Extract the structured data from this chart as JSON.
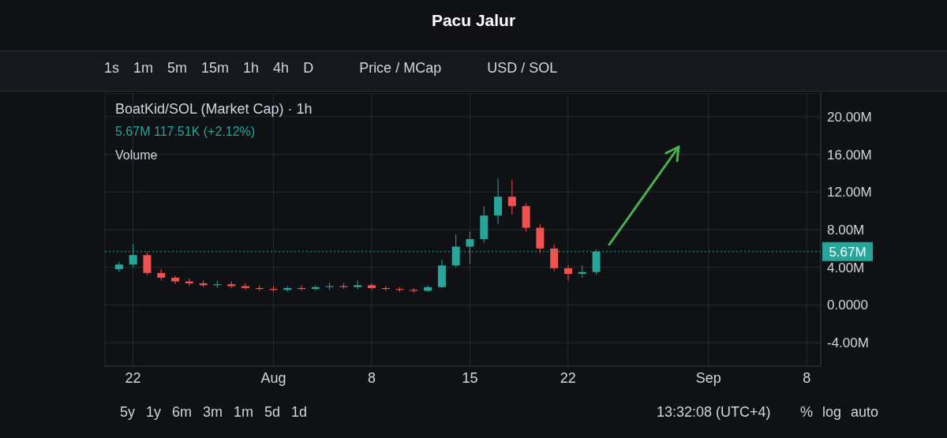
{
  "chart_data": {
    "type": "candlestick",
    "title": "Pacu Jalur",
    "subtitle": "BoatKid/SOL (Market Cap) · 1h",
    "annotations": [
      "5.67M 117.51K (+2.12%)",
      "Volume",
      "13:32:08 (UTC+4)",
      "1s",
      "1m",
      "5m",
      "15m",
      "1h",
      "4h",
      "D",
      "Price / MCap",
      "USD / SOL",
      "5y",
      "1y",
      "6m",
      "3m",
      "1m",
      "5d",
      "1d",
      "%",
      "log",
      "auto"
    ],
    "x": [
      "--07-21",
      "--07-22",
      "--07-23",
      "--07-24",
      "--07-25",
      "--07-26",
      "--07-27",
      "--07-28",
      "--07-29",
      "--07-30",
      "--07-31",
      "--08-01",
      "--08-02",
      "--08-03",
      "--08-04",
      "--08-05",
      "--08-06",
      "--08-07",
      "--08-08",
      "--08-09",
      "--08-10",
      "--08-11",
      "--08-12",
      "--08-13",
      "--08-14",
      "--08-15",
      "--08-16",
      "--08-17",
      "--08-18",
      "--08-19",
      "--08-20",
      "--08-21",
      "--08-22",
      "--08-23",
      "--08-24"
    ],
    "ohlc": [
      [
        3.8,
        4.6,
        3.5,
        4.3
      ],
      [
        4.3,
        6.5,
        4.0,
        5.3
      ],
      [
        5.3,
        5.6,
        3.2,
        3.4
      ],
      [
        3.4,
        3.8,
        2.6,
        2.9
      ],
      [
        2.9,
        3.1,
        2.2,
        2.5
      ],
      [
        2.5,
        2.8,
        2.0,
        2.3
      ],
      [
        2.3,
        2.6,
        1.9,
        2.1
      ],
      [
        2.1,
        2.6,
        1.8,
        2.2
      ],
      [
        2.2,
        2.5,
        1.8,
        2.0
      ],
      [
        2.0,
        2.3,
        1.6,
        1.8
      ],
      [
        1.8,
        2.1,
        1.5,
        1.7
      ],
      [
        1.7,
        2.0,
        1.4,
        1.6
      ],
      [
        1.6,
        2.0,
        1.4,
        1.8
      ],
      [
        1.8,
        2.1,
        1.5,
        1.7
      ],
      [
        1.7,
        2.1,
        1.5,
        1.9
      ],
      [
        1.9,
        2.4,
        1.6,
        2.0
      ],
      [
        2.0,
        2.3,
        1.7,
        1.9
      ],
      [
        1.9,
        2.6,
        1.7,
        2.1
      ],
      [
        2.1,
        2.3,
        1.6,
        1.8
      ],
      [
        1.8,
        2.0,
        1.5,
        1.7
      ],
      [
        1.7,
        1.9,
        1.4,
        1.6
      ],
      [
        1.6,
        1.8,
        1.3,
        1.5
      ],
      [
        1.5,
        2.1,
        1.4,
        1.9
      ],
      [
        1.9,
        4.8,
        1.8,
        4.2
      ],
      [
        4.2,
        7.5,
        4.0,
        6.2
      ],
      [
        6.2,
        7.8,
        4.4,
        7.0
      ],
      [
        7.0,
        10.5,
        6.6,
        9.5
      ],
      [
        9.5,
        13.4,
        8.6,
        11.5
      ],
      [
        11.5,
        13.3,
        9.6,
        10.5
      ],
      [
        10.5,
        10.8,
        7.8,
        8.2
      ],
      [
        8.2,
        8.6,
        5.5,
        6.0
      ],
      [
        6.0,
        6.4,
        3.6,
        3.9
      ],
      [
        3.9,
        4.2,
        2.6,
        3.3
      ],
      [
        3.3,
        4.2,
        2.9,
        3.5
      ],
      [
        3.5,
        5.9,
        3.2,
        5.67
      ]
    ],
    "colors": [
      "#26a69a",
      "#26a69a",
      "#ef5350",
      "#ef5350",
      "#ef5350",
      "#ef5350",
      "#ef5350",
      "#26a69a",
      "#ef5350",
      "#ef5350",
      "#ef5350",
      "#ef5350",
      "#26a69a",
      "#ef5350",
      "#26a69a",
      "#26a69a",
      "#ef5350",
      "#26a69a",
      "#ef5350",
      "#ef5350",
      "#ef5350",
      "#ef5350",
      "#26a69a",
      "#26a69a",
      "#26a69a",
      "#26a69a",
      "#26a69a",
      "#26a69a",
      "#ef5350",
      "#ef5350",
      "#ef5350",
      "#ef5350",
      "#ef5350",
      "#26a69a",
      "#26a69a"
    ],
    "xlim": [
      "--07-20",
      "--09-09"
    ],
    "xticks": [
      {
        "value": "--07-22",
        "label": "22"
      },
      {
        "value": "--08-01",
        "label": "Aug"
      },
      {
        "value": "--08-08",
        "label": "8"
      },
      {
        "value": "--08-15",
        "label": "15"
      },
      {
        "value": "--08-22",
        "label": "22"
      },
      {
        "value": "--09-01",
        "label": "Sep"
      },
      {
        "value": "--09-08",
        "label": "8"
      }
    ],
    "ylim": [
      -6.5,
      22.5
    ],
    "yticks": [
      {
        "value": -4,
        "label": "-4.00M"
      },
      {
        "value": 0,
        "label": "0.0000"
      },
      {
        "value": 4,
        "label": "4.00M"
      },
      {
        "value": 8,
        "label": "8.00M"
      },
      {
        "value": 12,
        "label": "12.00M"
      },
      {
        "value": 16,
        "label": "16.00M"
      },
      {
        "value": 20,
        "label": "20.00M"
      }
    ],
    "ref_lines": [
      {
        "axis": "y",
        "value": 5.67,
        "label": "5.67M",
        "color": "#26a69a",
        "line_style": "dotted"
      }
    ],
    "grid": true
  }
}
